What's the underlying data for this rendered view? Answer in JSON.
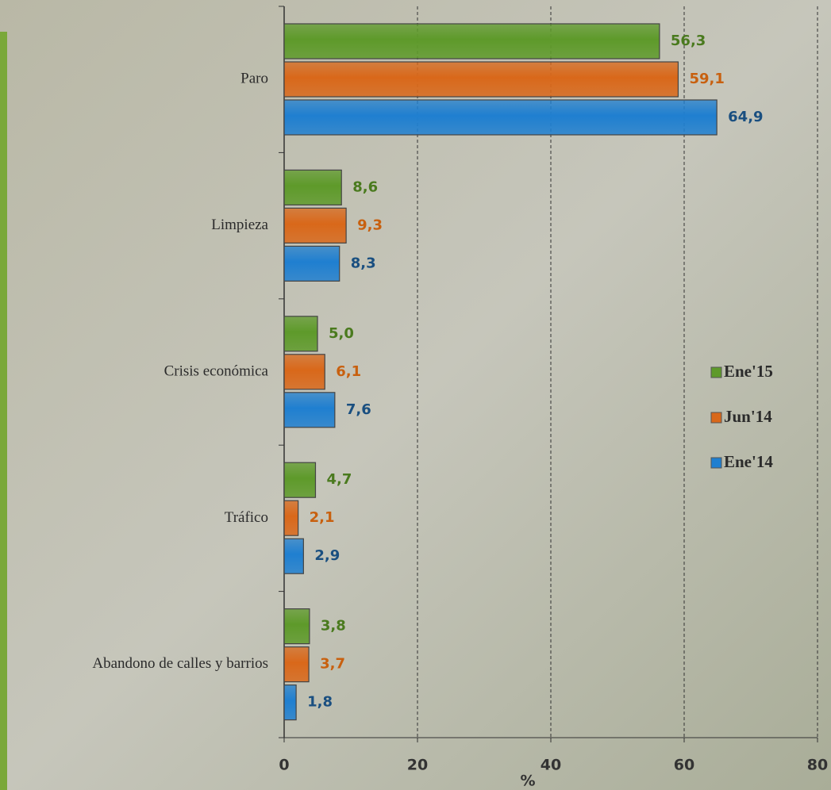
{
  "chart_data": {
    "type": "hbar",
    "categories": [
      "Paro",
      "Limpieza",
      "Crisis económica",
      "Tráfico",
      "Abandono de calles y barrios"
    ],
    "series": [
      {
        "name": "Ene'15",
        "color": "#5e9a2a",
        "label_color": "#4a7a1e",
        "values": [
          56.3,
          8.6,
          5.0,
          4.7,
          3.8
        ],
        "value_labels": [
          "56,3",
          "8,6",
          "5,0",
          "4,7",
          "3,8"
        ]
      },
      {
        "name": "Jun'14",
        "color": "#d9681a",
        "label_color": "#c8600f",
        "values": [
          59.1,
          9.3,
          6.1,
          2.1,
          3.7
        ],
        "value_labels": [
          "59,1",
          "9,3",
          "6,1",
          "2,1",
          "3,7"
        ]
      },
      {
        "name": "Ene'14",
        "color": "#1f7fd0",
        "label_color": "#1a4f80",
        "values": [
          64.9,
          8.3,
          7.6,
          2.9,
          1.8
        ],
        "value_labels": [
          "64,9",
          "8,3",
          "7,6",
          "2,9",
          "1,8"
        ]
      }
    ],
    "xlabel": "%",
    "xlim": [
      0,
      80
    ],
    "xticks": [
      0,
      20,
      40,
      60,
      80
    ],
    "grid": true,
    "legend": "right"
  }
}
